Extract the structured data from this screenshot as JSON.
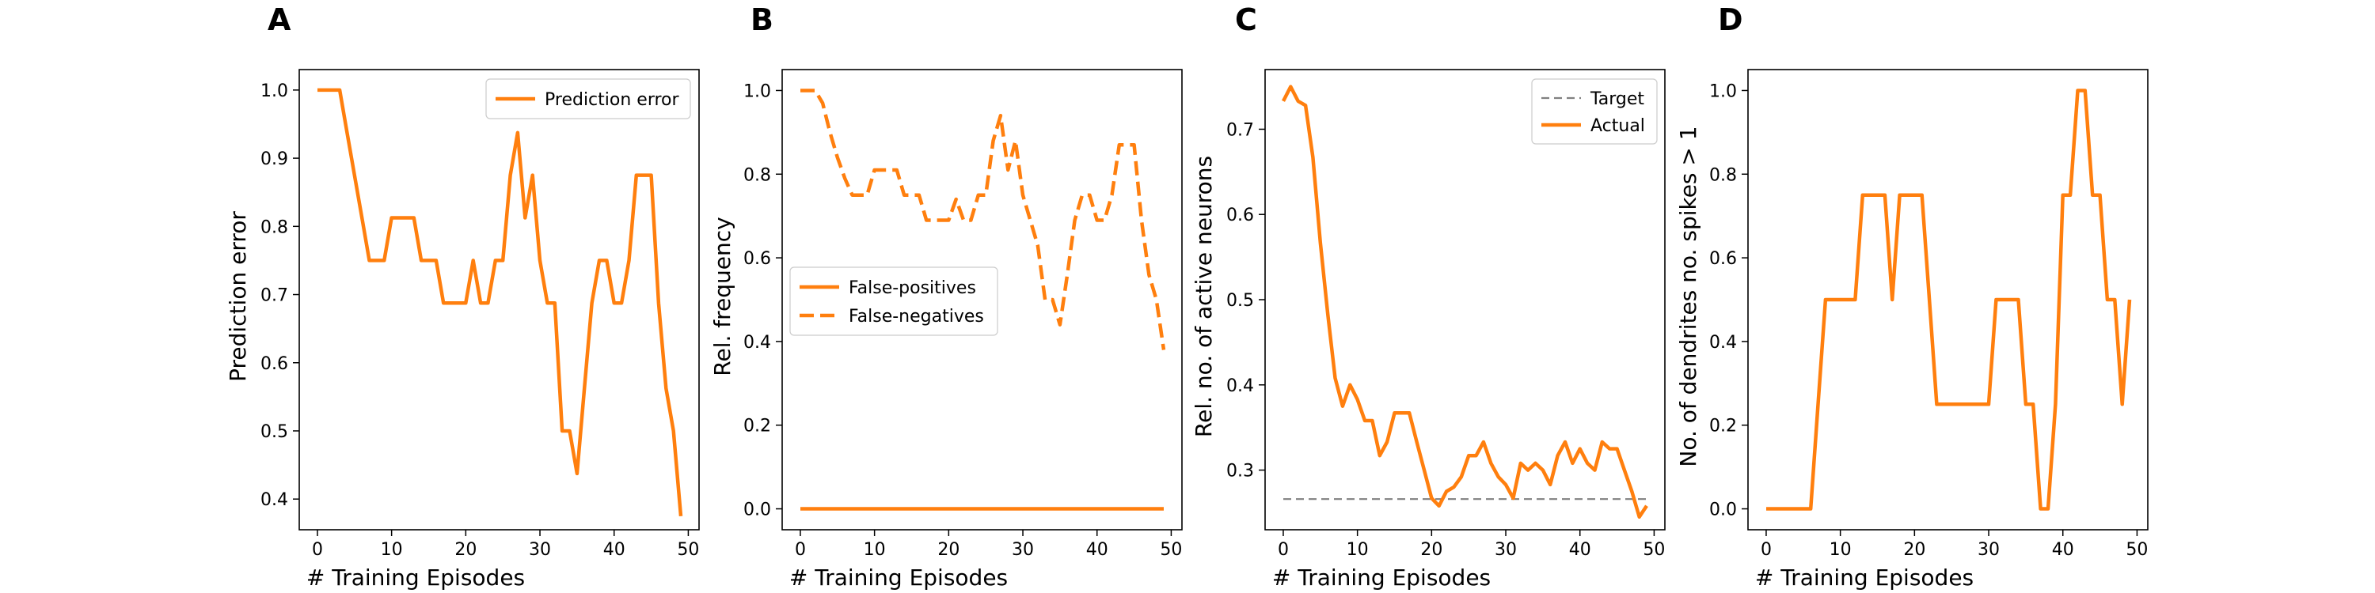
{
  "colors": {
    "series": "#ff7f0e",
    "target": "#808080"
  },
  "chart_data": [
    {
      "panel": "A",
      "type": "line",
      "xlabel": "# Training Episodes",
      "ylabel": "Prediction error",
      "xlim": [
        -2.45,
        51.45
      ],
      "ylim": [
        0.355,
        1.03
      ],
      "xticks": [
        0,
        10,
        20,
        30,
        40,
        50
      ],
      "yticks": [
        0.4,
        0.5,
        0.6,
        0.7,
        0.8,
        0.9,
        1.0
      ],
      "ytick_labels": [
        "0.4",
        "0.5",
        "0.6",
        "0.7",
        "0.8",
        "0.9",
        "1.0"
      ],
      "legend": "top-right",
      "series": [
        {
          "name": "Prediction error",
          "dash": "solid",
          "x": [
            0,
            1,
            2,
            3,
            4,
            5,
            6,
            7,
            8,
            9,
            10,
            11,
            12,
            13,
            14,
            15,
            16,
            17,
            18,
            19,
            20,
            21,
            22,
            23,
            24,
            25,
            26,
            27,
            28,
            29,
            30,
            31,
            32,
            33,
            34,
            35,
            36,
            37,
            38,
            39,
            40,
            41,
            42,
            43,
            44,
            45,
            46,
            47,
            48,
            49
          ],
          "y": [
            1.0,
            1.0,
            1.0,
            1.0,
            0.9375,
            0.875,
            0.8125,
            0.75,
            0.75,
            0.75,
            0.8125,
            0.8125,
            0.8125,
            0.8125,
            0.75,
            0.75,
            0.75,
            0.6875,
            0.6875,
            0.6875,
            0.6875,
            0.75,
            0.6875,
            0.6875,
            0.75,
            0.75,
            0.875,
            0.9375,
            0.8125,
            0.875,
            0.75,
            0.6875,
            0.6875,
            0.5,
            0.5,
            0.4375,
            0.5625,
            0.6875,
            0.75,
            0.75,
            0.6875,
            0.6875,
            0.75,
            0.875,
            0.875,
            0.875,
            0.6875,
            0.5625,
            0.5,
            0.375
          ]
        }
      ]
    },
    {
      "panel": "B",
      "type": "line",
      "xlabel": "# Training Episodes",
      "ylabel": "Rel. frequency",
      "xlim": [
        -2.45,
        51.45
      ],
      "ylim": [
        -0.05,
        1.05
      ],
      "xticks": [
        0,
        10,
        20,
        30,
        40,
        50
      ],
      "yticks": [
        0.0,
        0.2,
        0.4,
        0.6,
        0.8,
        1.0
      ],
      "ytick_labels": [
        "0.0",
        "0.2",
        "0.4",
        "0.6",
        "0.8",
        "1.0"
      ],
      "legend": "center-left",
      "series": [
        {
          "name": "False-positives",
          "dash": "solid",
          "x": [
            0,
            1,
            2,
            3,
            4,
            5,
            6,
            7,
            8,
            9,
            10,
            11,
            12,
            13,
            14,
            15,
            16,
            17,
            18,
            19,
            20,
            21,
            22,
            23,
            24,
            25,
            26,
            27,
            28,
            29,
            30,
            31,
            32,
            33,
            34,
            35,
            36,
            37,
            38,
            39,
            40,
            41,
            42,
            43,
            44,
            45,
            46,
            47,
            48,
            49
          ],
          "y": [
            0,
            0,
            0,
            0,
            0,
            0,
            0,
            0,
            0,
            0,
            0,
            0,
            0,
            0,
            0,
            0,
            0,
            0,
            0,
            0,
            0,
            0,
            0,
            0,
            0,
            0,
            0,
            0,
            0,
            0,
            0,
            0,
            0,
            0,
            0,
            0,
            0,
            0,
            0,
            0,
            0,
            0,
            0,
            0,
            0,
            0,
            0,
            0,
            0,
            0
          ]
        },
        {
          "name": "False-negatives",
          "dash": "dashed",
          "x": [
            0,
            1,
            2,
            3,
            4,
            5,
            6,
            7,
            8,
            9,
            10,
            11,
            12,
            13,
            14,
            15,
            16,
            17,
            18,
            19,
            20,
            21,
            22,
            23,
            24,
            25,
            26,
            27,
            28,
            29,
            30,
            31,
            32,
            33,
            34,
            35,
            36,
            37,
            38,
            39,
            40,
            41,
            42,
            43,
            44,
            45,
            46,
            47,
            48,
            49
          ],
          "y": [
            1.0,
            1.0,
            1.0,
            0.97,
            0.9,
            0.84,
            0.79,
            0.75,
            0.75,
            0.75,
            0.81,
            0.81,
            0.81,
            0.81,
            0.75,
            0.75,
            0.75,
            0.69,
            0.69,
            0.69,
            0.69,
            0.74,
            0.69,
            0.69,
            0.75,
            0.75,
            0.88,
            0.94,
            0.81,
            0.88,
            0.75,
            0.69,
            0.63,
            0.5,
            0.5,
            0.44,
            0.56,
            0.69,
            0.75,
            0.75,
            0.69,
            0.69,
            0.75,
            0.87,
            0.87,
            0.87,
            0.69,
            0.56,
            0.5,
            0.38
          ]
        }
      ]
    },
    {
      "panel": "C",
      "type": "line",
      "xlabel": "# Training Episodes",
      "ylabel": "Rel. no. of active neurons",
      "xlim": [
        -2.45,
        51.45
      ],
      "ylim": [
        0.23,
        0.77
      ],
      "xticks": [
        0,
        10,
        20,
        30,
        40,
        50
      ],
      "yticks": [
        0.3,
        0.4,
        0.5,
        0.6,
        0.7
      ],
      "ytick_labels": [
        "0.3",
        "0.4",
        "0.5",
        "0.6",
        "0.7"
      ],
      "legend": "top-right",
      "series": [
        {
          "name": "Target",
          "dash": "dashed",
          "x": [
            0,
            49
          ],
          "y": [
            0.266,
            0.266
          ]
        },
        {
          "name": "Actual",
          "dash": "solid",
          "x": [
            0,
            1,
            2,
            3,
            4,
            5,
            6,
            7,
            8,
            9,
            10,
            11,
            12,
            13,
            14,
            15,
            16,
            17,
            18,
            19,
            20,
            21,
            22,
            23,
            24,
            25,
            26,
            27,
            28,
            29,
            30,
            31,
            32,
            33,
            34,
            35,
            36,
            37,
            38,
            39,
            40,
            41,
            42,
            43,
            44,
            45,
            46,
            47,
            48,
            49
          ],
          "y": [
            0.733,
            0.75,
            0.733,
            0.728,
            0.667,
            0.567,
            0.483,
            0.408,
            0.375,
            0.4,
            0.383,
            0.358,
            0.358,
            0.317,
            0.333,
            0.367,
            0.367,
            0.367,
            0.333,
            0.3,
            0.267,
            0.258,
            0.275,
            0.28,
            0.292,
            0.317,
            0.317,
            0.333,
            0.308,
            0.292,
            0.283,
            0.267,
            0.308,
            0.3,
            0.308,
            0.3,
            0.283,
            0.317,
            0.333,
            0.308,
            0.325,
            0.308,
            0.3,
            0.333,
            0.325,
            0.325,
            0.3,
            0.275,
            0.245,
            0.258
          ]
        }
      ]
    },
    {
      "panel": "D",
      "type": "line",
      "xlabel": "# Training Episodes",
      "ylabel": "No. of dendrites no. spikes > 1",
      "xlim": [
        -2.45,
        51.45
      ],
      "ylim": [
        -0.05,
        1.05
      ],
      "xticks": [
        0,
        10,
        20,
        30,
        40,
        50
      ],
      "yticks": [
        0.0,
        0.2,
        0.4,
        0.6,
        0.8,
        1.0
      ],
      "ytick_labels": [
        "0.0",
        "0.2",
        "0.4",
        "0.6",
        "0.8",
        "1.0"
      ],
      "legend": "none",
      "series": [
        {
          "name": "",
          "dash": "solid",
          "x": [
            0,
            1,
            2,
            3,
            4,
            5,
            6,
            7,
            8,
            9,
            10,
            11,
            12,
            13,
            14,
            15,
            16,
            17,
            18,
            19,
            20,
            21,
            22,
            23,
            24,
            25,
            26,
            27,
            28,
            29,
            30,
            31,
            32,
            33,
            34,
            35,
            36,
            37,
            38,
            39,
            40,
            41,
            42,
            43,
            44,
            45,
            46,
            47,
            48,
            49
          ],
          "y": [
            0,
            0,
            0,
            0,
            0,
            0,
            0,
            0.25,
            0.5,
            0.5,
            0.5,
            0.5,
            0.5,
            0.75,
            0.75,
            0.75,
            0.75,
            0.5,
            0.75,
            0.75,
            0.75,
            0.75,
            0.5,
            0.25,
            0.25,
            0.25,
            0.25,
            0.25,
            0.25,
            0.25,
            0.25,
            0.5,
            0.5,
            0.5,
            0.5,
            0.25,
            0.25,
            0,
            0,
            0.25,
            0.75,
            0.75,
            1.0,
            1.0,
            0.75,
            0.75,
            0.5,
            0.5,
            0.25,
            0.5
          ]
        }
      ]
    }
  ]
}
